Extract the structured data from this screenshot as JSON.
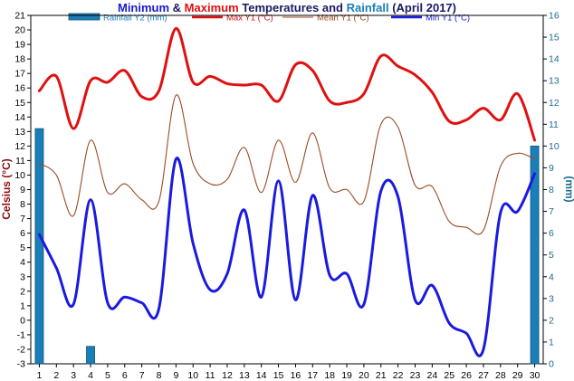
{
  "chart_data": {
    "type": "line",
    "title_parts": [
      {
        "text": "Minimum",
        "color": "#1a1acc"
      },
      {
        "text": " & ",
        "color": "#1a1a66"
      },
      {
        "text": "Maximum",
        "color": "#e01010"
      },
      {
        "text": " Temperatures and ",
        "color": "#1a1a66"
      },
      {
        "text": "Rainfall",
        "color": "#1a7fb8"
      },
      {
        "text": " (April 2017)",
        "color": "#1a1a66"
      }
    ],
    "ylabel": "Celsius (°C)",
    "ylabel_color": "#8b1010",
    "y2label": "(mm)",
    "y2label_color": "#1f6b8a",
    "x": [
      1,
      2,
      3,
      4,
      5,
      6,
      7,
      8,
      9,
      10,
      11,
      12,
      13,
      14,
      15,
      16,
      17,
      18,
      19,
      20,
      21,
      22,
      23,
      24,
      25,
      26,
      27,
      28,
      29,
      30
    ],
    "xticks": [
      "1",
      "2",
      "3",
      "4",
      "5",
      "6",
      "7",
      "8",
      "9",
      "10",
      "11",
      "12",
      "13",
      "14",
      "15",
      "16",
      "17",
      "18",
      "19",
      "20",
      "21",
      "22",
      "23",
      "24",
      "25",
      "26",
      "27",
      "28",
      "29",
      "30"
    ],
    "ylim": [
      -3,
      21
    ],
    "yticks": [
      "-3",
      "-2",
      "-1",
      "0",
      "1",
      "2",
      "3",
      "4",
      "5",
      "6",
      "7",
      "8",
      "9",
      "10",
      "11",
      "12",
      "13",
      "14",
      "15",
      "16",
      "17",
      "18",
      "19",
      "20",
      "21"
    ],
    "y2lim": [
      0,
      16
    ],
    "y2ticks": [
      "0",
      "1",
      "2",
      "3",
      "4",
      "5",
      "6",
      "7",
      "8",
      "9",
      "10",
      "11",
      "12",
      "13",
      "14",
      "15",
      "16"
    ],
    "series": [
      {
        "name": "Max Y1 (°C)",
        "axis": "left",
        "color": "#e01010",
        "width": 3,
        "values": [
          15.8,
          16.8,
          13.2,
          16.5,
          16.4,
          17.2,
          15.4,
          15.8,
          20.1,
          16.4,
          16.8,
          16.3,
          16.2,
          16.2,
          15.1,
          17.6,
          17.2,
          15.1,
          15.0,
          15.6,
          18.2,
          17.5,
          16.9,
          15.7,
          13.7,
          13.8,
          14.6,
          13.8,
          15.6,
          12.4
        ]
      },
      {
        "name": "Mean Y1 (°C)",
        "axis": "left",
        "color": "#9b4a24",
        "width": 1.1,
        "values": [
          10.8,
          10.0,
          7.2,
          12.4,
          8.8,
          9.4,
          8.3,
          8.2,
          15.5,
          10.8,
          9.4,
          9.7,
          11.9,
          8.8,
          12.4,
          9.5,
          12.9,
          9.1,
          9.0,
          8.2,
          13.5,
          13.3,
          9.3,
          9.2,
          6.8,
          6.4,
          6.2,
          10.6,
          11.5,
          11.1
        ]
      },
      {
        "name": "Min Y1 (°C)",
        "axis": "left",
        "color": "#1a1ae0",
        "width": 3,
        "values": [
          5.9,
          3.6,
          1.1,
          8.3,
          1.2,
          1.6,
          1.2,
          0.8,
          11.1,
          5.3,
          2.1,
          3.2,
          7.6,
          1.6,
          9.6,
          1.4,
          8.6,
          3.1,
          3.2,
          1.1,
          8.9,
          8.5,
          1.4,
          2.4,
          -0.2,
          -0.9,
          -2.0,
          7.4,
          7.5,
          10.1
        ]
      },
      {
        "name": "Rainfall Y2 (mm)",
        "axis": "right",
        "type": "bar",
        "color": "#1a7fb8",
        "values": [
          10.8,
          0,
          0,
          0.8,
          0,
          0,
          0,
          0,
          0,
          0,
          0,
          0,
          0,
          0,
          0,
          0,
          0,
          0,
          0,
          0,
          0,
          0,
          0,
          0,
          0,
          0,
          0,
          0,
          0,
          10
        ]
      }
    ],
    "legend": [
      {
        "label": "Rainfall Y2 (mm)",
        "color": "#1a7fb8",
        "symbol": "bar",
        "text_color": "#1a7fb8"
      },
      {
        "label": "Max Y1 (°C)",
        "color": "#e01010",
        "symbol": "line-thick",
        "text_color": "#e01010"
      },
      {
        "label": "Mean Y1 (°C)",
        "color": "#9b4a24",
        "symbol": "line-thin",
        "text_color": "#9b4a24"
      },
      {
        "label": "Min Y1 (°C)",
        "color": "#1a1ae0",
        "symbol": "line-thick",
        "text_color": "#1a1ae0"
      }
    ],
    "legend_position": "top",
    "grid": false
  }
}
